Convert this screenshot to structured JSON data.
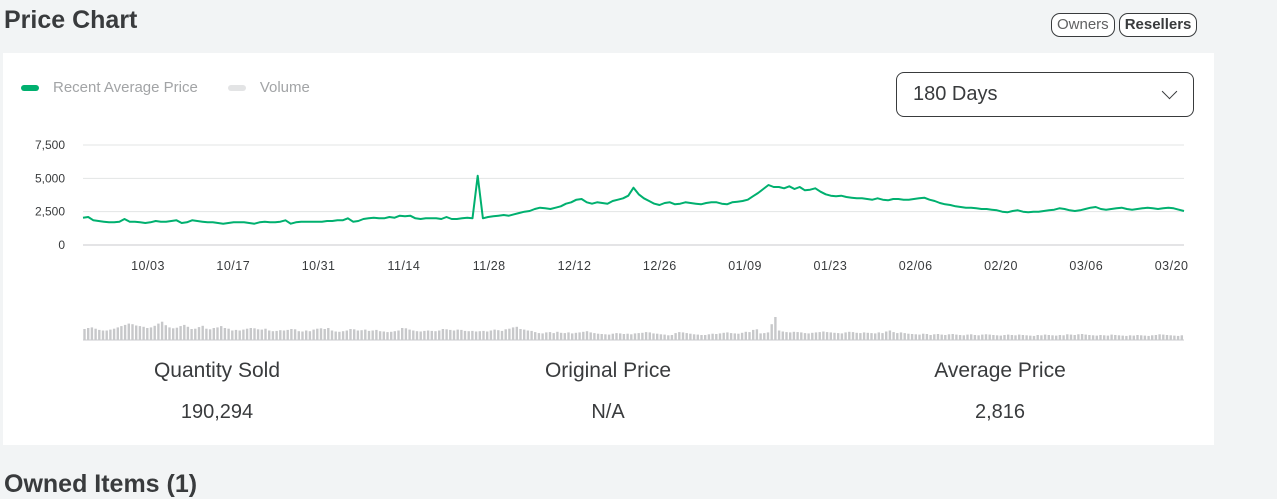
{
  "header": {
    "title": "Price Chart"
  },
  "toggles": {
    "owners": "Owners",
    "resellers": "Resellers"
  },
  "legend": {
    "price": {
      "label": "Recent Average Price",
      "color": "#00b06f"
    },
    "volume": {
      "label": "Volume",
      "color": "#e3e4e5"
    }
  },
  "period_select": {
    "value": "180 Days"
  },
  "stats": {
    "quantity_sold": {
      "label": "Quantity Sold",
      "value": "190,294"
    },
    "original_price": {
      "label": "Original Price",
      "value": "N/A"
    },
    "average_price": {
      "label": "Average Price",
      "value": "2,816"
    }
  },
  "next_section": {
    "title": "Owned Items (1)"
  },
  "chart_data": {
    "type": "line",
    "x_tick_labels": [
      "10/03",
      "10/17",
      "10/31",
      "11/14",
      "11/28",
      "12/12",
      "12/26",
      "01/09",
      "01/23",
      "02/06",
      "02/20",
      "03/06",
      "03/20"
    ],
    "y_tick_labels": [
      "7,500",
      "5,000",
      "2,500",
      "0"
    ],
    "ylim": [
      0,
      7500
    ],
    "grid": true,
    "series": [
      {
        "name": "Recent Average Price",
        "color": "#00b06f",
        "values": [
          2050,
          2100,
          1850,
          1800,
          1750,
          1700,
          1700,
          1750,
          1950,
          1750,
          1750,
          1700,
          1650,
          1700,
          1800,
          1750,
          1750,
          1800,
          1850,
          1650,
          1700,
          1850,
          1800,
          1750,
          1700,
          1700,
          1650,
          1600,
          1650,
          1700,
          1700,
          1700,
          1650,
          1600,
          1700,
          1750,
          1700,
          1700,
          1750,
          1850,
          1600,
          1700,
          1750,
          1750,
          1750,
          1750,
          1750,
          1800,
          1800,
          1850,
          1850,
          2000,
          1750,
          1800,
          1950,
          2000,
          2050,
          2000,
          2000,
          2100,
          2050,
          2200,
          2150,
          2200,
          2000,
          1950,
          2000,
          2000,
          2000,
          1950,
          2100,
          1950,
          1950,
          2000,
          2050,
          2000,
          5200,
          2000,
          2100,
          2150,
          2200,
          2250,
          2200,
          2300,
          2400,
          2500,
          2550,
          2700,
          2800,
          2750,
          2700,
          2800,
          2900,
          3100,
          3200,
          3400,
          3450,
          3200,
          3100,
          3200,
          3150,
          3100,
          3300,
          3400,
          3500,
          3700,
          4300,
          3800,
          3500,
          3300,
          3100,
          3000,
          3150,
          3200,
          3050,
          3100,
          3200,
          3150,
          3100,
          3050,
          3150,
          3200,
          3200,
          3100,
          3050,
          3200,
          3250,
          3300,
          3400,
          3650,
          3900,
          4200,
          4500,
          4350,
          4350,
          4250,
          4400,
          4200,
          4350,
          4100,
          4150,
          4250,
          4000,
          3800,
          3700,
          3650,
          3700,
          3600,
          3550,
          3500,
          3500,
          3450,
          3400,
          3500,
          3400,
          3350,
          3450,
          3450,
          3400,
          3400,
          3450,
          3500,
          3550,
          3400,
          3300,
          3150,
          3050,
          3000,
          2900,
          2850,
          2800,
          2800,
          2750,
          2700,
          2700,
          2650,
          2600,
          2500,
          2450,
          2550,
          2600,
          2500,
          2450,
          2500,
          2500,
          2550,
          2600,
          2650,
          2750,
          2700,
          2600,
          2550,
          2600,
          2700,
          2800,
          2850,
          2700,
          2650,
          2700,
          2750,
          2800,
          2700,
          2650,
          2700,
          2750,
          2800,
          2750,
          2700,
          2750,
          2800,
          2750,
          2650,
          2550
        ]
      },
      {
        "name": "Volume",
        "color": "#c7c8ca",
        "values": [
          35,
          38,
          40,
          36,
          32,
          30,
          30,
          33,
          36,
          40,
          44,
          48,
          52,
          50,
          46,
          44,
          42,
          38,
          40,
          45,
          52,
          58,
          47,
          40,
          37,
          39,
          44,
          48,
          42,
          35,
          36,
          41,
          45,
          36,
          34,
          38,
          40,
          44,
          38,
          36,
          30,
          32,
          30,
          33,
          36,
          38,
          37,
          34,
          33,
          36,
          30,
          28,
          29,
          31,
          30,
          32,
          35,
          34,
          28,
          27,
          30,
          28,
          33,
          36,
          37,
          35,
          38,
          30,
          27,
          26,
          28,
          30,
          35,
          34,
          30,
          31,
          33,
          29,
          30,
          32,
          28,
          27,
          25,
          26,
          28,
          30,
          38,
          37,
          33,
          30,
          28,
          27,
          29,
          30,
          29,
          28,
          30,
          35,
          34,
          32,
          30,
          33,
          32,
          29,
          28,
          29,
          27,
          28,
          29,
          27,
          30,
          33,
          31,
          29,
          34,
          36,
          40,
          42,
          35,
          33,
          30,
          29,
          25,
          22,
          21,
          24,
          25,
          22,
          26,
          23,
          22,
          24,
          21,
          23,
          24,
          26,
          28,
          24,
          22,
          20,
          19,
          18,
          17,
          20,
          22,
          21,
          19,
          20,
          18,
          21,
          22,
          23,
          25,
          24,
          21,
          20,
          18,
          17,
          15,
          16,
          22,
          25,
          24,
          22,
          20,
          18,
          17,
          16,
          16,
          18,
          20,
          19,
          21,
          23,
          24,
          22,
          21,
          20,
          23,
          26,
          25,
          32,
          34,
          21,
          22,
          24,
          50,
          73,
          30,
          27,
          25,
          24,
          26,
          25,
          24,
          22,
          21,
          23,
          24,
          25,
          27,
          25,
          24,
          23,
          22,
          21,
          24,
          26,
          25,
          23,
          22,
          24,
          23,
          22,
          21,
          24,
          22,
          27,
          30,
          25,
          22,
          24,
          22,
          20,
          19,
          18,
          17,
          20,
          19,
          16,
          18,
          19,
          17,
          16,
          18,
          19,
          17,
          16,
          15,
          17,
          18,
          16,
          15,
          17,
          18,
          17,
          16,
          15,
          14,
          16,
          17,
          16,
          15,
          17,
          16,
          15,
          14,
          13,
          16,
          15,
          17,
          16,
          15,
          14,
          16,
          15,
          18,
          17,
          16,
          18,
          19,
          17,
          16,
          15,
          14,
          16,
          15,
          14,
          17,
          16,
          15,
          14,
          13,
          15,
          14,
          16,
          15,
          14,
          13,
          15,
          16,
          18,
          17,
          16,
          15,
          14,
          13,
          15
        ]
      }
    ]
  }
}
